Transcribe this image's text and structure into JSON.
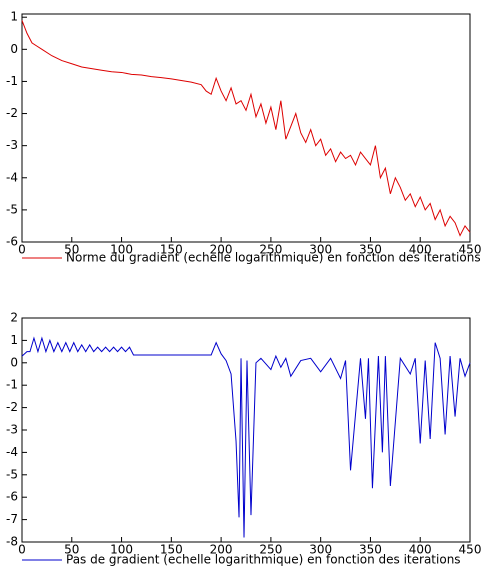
{
  "chart_data": [
    {
      "type": "line",
      "x": [
        0,
        5,
        10,
        15,
        20,
        30,
        40,
        50,
        60,
        70,
        80,
        90,
        100,
        110,
        120,
        130,
        140,
        150,
        160,
        170,
        180,
        185,
        190,
        195,
        200,
        205,
        210,
        215,
        220,
        225,
        230,
        235,
        240,
        245,
        250,
        255,
        260,
        265,
        270,
        275,
        280,
        285,
        290,
        295,
        300,
        305,
        310,
        315,
        320,
        325,
        330,
        335,
        340,
        345,
        350,
        355,
        360,
        365,
        370,
        375,
        380,
        385,
        390,
        395,
        400,
        405,
        410,
        415,
        420,
        425,
        430,
        435,
        440,
        445,
        450
      ],
      "series": [
        {
          "name": "Norme du gradient (echelle logarithmique) en fonction des iterations",
          "color": "#dd0000",
          "values": [
            0.9,
            0.5,
            0.2,
            0.1,
            0.0,
            -0.2,
            -0.35,
            -0.45,
            -0.55,
            -0.6,
            -0.65,
            -0.7,
            -0.72,
            -0.78,
            -0.8,
            -0.85,
            -0.88,
            -0.92,
            -0.97,
            -1.02,
            -1.1,
            -1.3,
            -1.4,
            -0.9,
            -1.3,
            -1.6,
            -1.2,
            -1.7,
            -1.6,
            -1.9,
            -1.4,
            -2.1,
            -1.7,
            -2.3,
            -1.8,
            -2.5,
            -1.6,
            -2.8,
            -2.4,
            -2.0,
            -2.6,
            -2.9,
            -2.5,
            -3.0,
            -2.8,
            -3.3,
            -3.1,
            -3.5,
            -3.2,
            -3.4,
            -3.3,
            -3.6,
            -3.2,
            -3.4,
            -3.6,
            -3.0,
            -4.0,
            -3.7,
            -4.5,
            -4.0,
            -4.3,
            -4.7,
            -4.5,
            -4.9,
            -4.6,
            -5.0,
            -4.8,
            -5.3,
            -5.0,
            -5.5,
            -5.2,
            -5.4,
            -5.8,
            -5.5,
            -5.7
          ]
        }
      ],
      "xlim": [
        0,
        450
      ],
      "xticks": [
        0,
        50,
        100,
        150,
        200,
        250,
        300,
        350,
        400,
        450
      ],
      "ylim": [
        -6,
        1.1
      ],
      "yticks": [
        -6,
        -5,
        -4,
        -3,
        -2,
        -1,
        0,
        1
      ]
    },
    {
      "type": "line",
      "x": [
        0,
        5,
        8,
        12,
        16,
        20,
        24,
        28,
        32,
        36,
        40,
        44,
        48,
        52,
        56,
        60,
        64,
        68,
        72,
        76,
        80,
        84,
        88,
        92,
        96,
        100,
        104,
        108,
        112,
        150,
        190,
        195,
        200,
        205,
        210,
        215,
        218,
        220,
        223,
        226,
        230,
        235,
        240,
        250,
        255,
        260,
        265,
        270,
        280,
        290,
        300,
        310,
        320,
        325,
        330,
        340,
        345,
        348,
        352,
        358,
        362,
        365,
        370,
        380,
        390,
        395,
        400,
        405,
        410,
        415,
        420,
        425,
        430,
        435,
        440,
        445,
        450
      ],
      "series": [
        {
          "name": "Pas de gradient (echelle logarithmique) en fonction des iterations",
          "color": "#0000cc",
          "values": [
            0.3,
            0.5,
            0.5,
            1.1,
            0.5,
            1.1,
            0.5,
            1.0,
            0.5,
            0.9,
            0.5,
            0.9,
            0.5,
            0.9,
            0.5,
            0.8,
            0.5,
            0.8,
            0.5,
            0.7,
            0.5,
            0.7,
            0.5,
            0.7,
            0.5,
            0.7,
            0.5,
            0.7,
            0.35,
            0.35,
            0.35,
            0.9,
            0.4,
            0.1,
            -0.5,
            -3.5,
            -6.9,
            0.2,
            -7.8,
            0.1,
            -6.8,
            0,
            0.2,
            -0.3,
            0.3,
            -0.2,
            0.2,
            -0.6,
            0.1,
            0.2,
            -0.4,
            0.2,
            -0.7,
            0.1,
            -4.8,
            0.2,
            -2.5,
            0.2,
            -5.6,
            0.3,
            -4.0,
            0.3,
            -5.5,
            0.2,
            -0.5,
            0.2,
            -3.6,
            0.1,
            -3.4,
            0.9,
            0.2,
            -3.2,
            0.3,
            -2.4,
            0.2,
            -0.6,
            0.0
          ]
        }
      ],
      "xlim": [
        0,
        450
      ],
      "xticks": [
        0,
        50,
        100,
        150,
        200,
        250,
        300,
        350,
        400,
        450
      ],
      "ylim": [
        -8,
        2
      ],
      "yticks": [
        -8,
        -7,
        -6,
        -5,
        -4,
        -3,
        -2,
        -1,
        0,
        1,
        2
      ]
    }
  ]
}
